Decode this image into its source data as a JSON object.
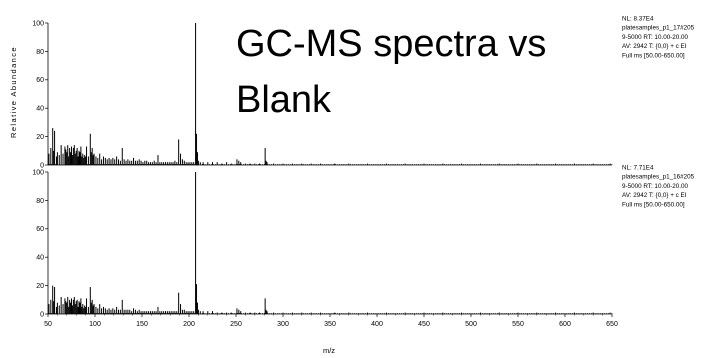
{
  "chart_data": {
    "type": "line",
    "title_lines": [
      "GC-MS spectra vs",
      "Blank"
    ],
    "xlabel": "m/z",
    "ylabel": "Relative Abundance",
    "xlim": [
      50,
      650
    ],
    "x_ticks": [
      50,
      100,
      150,
      200,
      250,
      300,
      350,
      400,
      450,
      500,
      550,
      600,
      650
    ],
    "y_ticks": [
      0,
      20,
      40,
      60,
      80,
      100
    ],
    "series": [
      {
        "info": [
          "NL: 8.37E4",
          "platesamples_p1_17#205",
          "9-5000  RT: 10.00-20.00",
          "AV: 2942 T: {0,0}  + c EI",
          "Full ms [50.00-650.00]"
        ],
        "ylim": [
          0,
          100
        ],
        "peaks": [
          [
            51,
            8
          ],
          [
            53,
            12
          ],
          [
            55,
            26
          ],
          [
            56,
            10
          ],
          [
            57,
            24
          ],
          [
            59,
            6
          ],
          [
            60,
            9
          ],
          [
            62,
            7
          ],
          [
            64,
            14
          ],
          [
            66,
            8
          ],
          [
            68,
            13
          ],
          [
            69,
            11
          ],
          [
            70,
            9
          ],
          [
            71,
            14
          ],
          [
            72,
            6
          ],
          [
            73,
            12
          ],
          [
            74,
            9
          ],
          [
            75,
            13
          ],
          [
            76,
            7
          ],
          [
            77,
            12
          ],
          [
            78,
            14
          ],
          [
            79,
            8
          ],
          [
            80,
            10
          ],
          [
            81,
            12
          ],
          [
            82,
            6
          ],
          [
            83,
            10
          ],
          [
            84,
            9
          ],
          [
            85,
            13
          ],
          [
            86,
            6
          ],
          [
            87,
            8
          ],
          [
            88,
            5
          ],
          [
            89,
            7
          ],
          [
            90,
            6
          ],
          [
            91,
            13
          ],
          [
            93,
            6
          ],
          [
            95,
            22
          ],
          [
            96,
            9
          ],
          [
            97,
            12
          ],
          [
            98,
            7
          ],
          [
            99,
            8
          ],
          [
            101,
            6
          ],
          [
            103,
            5
          ],
          [
            105,
            8
          ],
          [
            107,
            4
          ],
          [
            109,
            6
          ],
          [
            111,
            5
          ],
          [
            113,
            4
          ],
          [
            115,
            5
          ],
          [
            117,
            4
          ],
          [
            119,
            5
          ],
          [
            121,
            4
          ],
          [
            123,
            6
          ],
          [
            125,
            4
          ],
          [
            127,
            3
          ],
          [
            129,
            12
          ],
          [
            131,
            4
          ],
          [
            133,
            3
          ],
          [
            135,
            4
          ],
          [
            137,
            3
          ],
          [
            139,
            3
          ],
          [
            141,
            5
          ],
          [
            143,
            3
          ],
          [
            145,
            3
          ],
          [
            147,
            4
          ],
          [
            149,
            3
          ],
          [
            151,
            2
          ],
          [
            153,
            3
          ],
          [
            155,
            3
          ],
          [
            157,
            2
          ],
          [
            159,
            2
          ],
          [
            161,
            2
          ],
          [
            163,
            3
          ],
          [
            165,
            2
          ],
          [
            167,
            7
          ],
          [
            169,
            2
          ],
          [
            171,
            2
          ],
          [
            173,
            2
          ],
          [
            175,
            2
          ],
          [
            177,
            2
          ],
          [
            179,
            2
          ],
          [
            181,
            2
          ],
          [
            183,
            2
          ],
          [
            185,
            3
          ],
          [
            187,
            2
          ],
          [
            189,
            18
          ],
          [
            191,
            8
          ],
          [
            193,
            4
          ],
          [
            195,
            3
          ],
          [
            197,
            2
          ],
          [
            199,
            2
          ],
          [
            201,
            2
          ],
          [
            203,
            2
          ],
          [
            205,
            2
          ],
          [
            207,
            100
          ],
          [
            208,
            22
          ],
          [
            209,
            9
          ],
          [
            210,
            3
          ],
          [
            212,
            2
          ],
          [
            215,
            2
          ],
          [
            220,
            2
          ],
          [
            225,
            2
          ],
          [
            230,
            2
          ],
          [
            235,
            1
          ],
          [
            240,
            2
          ],
          [
            245,
            1
          ],
          [
            251,
            4
          ],
          [
            253,
            3
          ],
          [
            255,
            2
          ],
          [
            260,
            1
          ],
          [
            265,
            1
          ],
          [
            270,
            1
          ],
          [
            275,
            1
          ],
          [
            281,
            12
          ],
          [
            282,
            3
          ],
          [
            283,
            2
          ],
          [
            290,
            1
          ],
          [
            300,
            1
          ],
          [
            310,
            1
          ],
          [
            320,
            1
          ],
          [
            330,
            1
          ],
          [
            340,
            1
          ],
          [
            355,
            1
          ],
          [
            370,
            1
          ],
          [
            390,
            1
          ],
          [
            410,
            1
          ],
          [
            430,
            1
          ],
          [
            450,
            1
          ],
          [
            470,
            1
          ],
          [
            490,
            1
          ],
          [
            510,
            1
          ],
          [
            530,
            1
          ],
          [
            550,
            1
          ],
          [
            570,
            1
          ],
          [
            590,
            1
          ],
          [
            610,
            1
          ],
          [
            630,
            1
          ],
          [
            648,
            1
          ]
        ]
      },
      {
        "info": [
          "NL: 7.71E4",
          "platesamples_p1_16#205",
          "9-5000  RT: 10.00-20.00",
          "AV: 2942 T: {0,0}  + c EI",
          "Full ms [50.00-650.00]"
        ],
        "ylim": [
          0,
          100
        ],
        "peaks": [
          [
            51,
            7
          ],
          [
            53,
            10
          ],
          [
            55,
            20
          ],
          [
            56,
            9
          ],
          [
            57,
            19
          ],
          [
            59,
            5
          ],
          [
            60,
            8
          ],
          [
            62,
            6
          ],
          [
            64,
            12
          ],
          [
            66,
            7
          ],
          [
            68,
            11
          ],
          [
            69,
            9
          ],
          [
            70,
            8
          ],
          [
            71,
            12
          ],
          [
            72,
            5
          ],
          [
            73,
            10
          ],
          [
            74,
            8
          ],
          [
            75,
            11
          ],
          [
            76,
            6
          ],
          [
            77,
            10
          ],
          [
            78,
            12
          ],
          [
            79,
            7
          ],
          [
            80,
            9
          ],
          [
            81,
            10
          ],
          [
            82,
            5
          ],
          [
            83,
            9
          ],
          [
            84,
            8
          ],
          [
            85,
            11
          ],
          [
            86,
            5
          ],
          [
            87,
            7
          ],
          [
            88,
            4
          ],
          [
            89,
            6
          ],
          [
            90,
            5
          ],
          [
            91,
            11
          ],
          [
            93,
            5
          ],
          [
            95,
            19
          ],
          [
            96,
            8
          ],
          [
            97,
            10
          ],
          [
            98,
            6
          ],
          [
            99,
            7
          ],
          [
            101,
            5
          ],
          [
            103,
            4
          ],
          [
            105,
            7
          ],
          [
            107,
            4
          ],
          [
            109,
            5
          ],
          [
            111,
            4
          ],
          [
            113,
            3
          ],
          [
            115,
            4
          ],
          [
            117,
            3
          ],
          [
            119,
            4
          ],
          [
            121,
            3
          ],
          [
            123,
            5
          ],
          [
            125,
            3
          ],
          [
            127,
            3
          ],
          [
            129,
            10
          ],
          [
            131,
            3
          ],
          [
            133,
            3
          ],
          [
            135,
            3
          ],
          [
            137,
            3
          ],
          [
            139,
            2
          ],
          [
            141,
            4
          ],
          [
            143,
            3
          ],
          [
            145,
            2
          ],
          [
            147,
            3
          ],
          [
            149,
            2
          ],
          [
            151,
            2
          ],
          [
            153,
            2
          ],
          [
            155,
            2
          ],
          [
            157,
            2
          ],
          [
            159,
            2
          ],
          [
            161,
            2
          ],
          [
            163,
            2
          ],
          [
            165,
            2
          ],
          [
            167,
            5
          ],
          [
            169,
            2
          ],
          [
            171,
            2
          ],
          [
            173,
            2
          ],
          [
            175,
            2
          ],
          [
            177,
            2
          ],
          [
            179,
            2
          ],
          [
            181,
            2
          ],
          [
            183,
            2
          ],
          [
            185,
            2
          ],
          [
            187,
            2
          ],
          [
            189,
            15
          ],
          [
            191,
            7
          ],
          [
            193,
            3
          ],
          [
            195,
            3
          ],
          [
            197,
            2
          ],
          [
            199,
            2
          ],
          [
            201,
            2
          ],
          [
            203,
            2
          ],
          [
            205,
            2
          ],
          [
            207,
            100
          ],
          [
            208,
            21
          ],
          [
            209,
            8
          ],
          [
            210,
            3
          ],
          [
            212,
            2
          ],
          [
            215,
            2
          ],
          [
            220,
            2
          ],
          [
            225,
            2
          ],
          [
            230,
            1
          ],
          [
            235,
            1
          ],
          [
            240,
            1
          ],
          [
            245,
            1
          ],
          [
            251,
            4
          ],
          [
            253,
            3
          ],
          [
            255,
            2
          ],
          [
            260,
            1
          ],
          [
            265,
            1
          ],
          [
            270,
            1
          ],
          [
            275,
            1
          ],
          [
            281,
            11
          ],
          [
            282,
            3
          ],
          [
            283,
            2
          ],
          [
            290,
            1
          ],
          [
            300,
            1
          ],
          [
            310,
            1
          ],
          [
            320,
            1
          ],
          [
            330,
            1
          ],
          [
            340,
            1
          ],
          [
            355,
            1
          ],
          [
            370,
            1
          ],
          [
            390,
            1
          ],
          [
            410,
            1
          ],
          [
            430,
            1
          ],
          [
            450,
            1
          ],
          [
            470,
            1
          ],
          [
            490,
            1
          ],
          [
            510,
            1
          ],
          [
            530,
            1
          ],
          [
            550,
            1
          ],
          [
            570,
            1
          ],
          [
            590,
            1
          ],
          [
            610,
            1
          ],
          [
            630,
            1
          ],
          [
            648,
            1
          ]
        ]
      }
    ]
  }
}
